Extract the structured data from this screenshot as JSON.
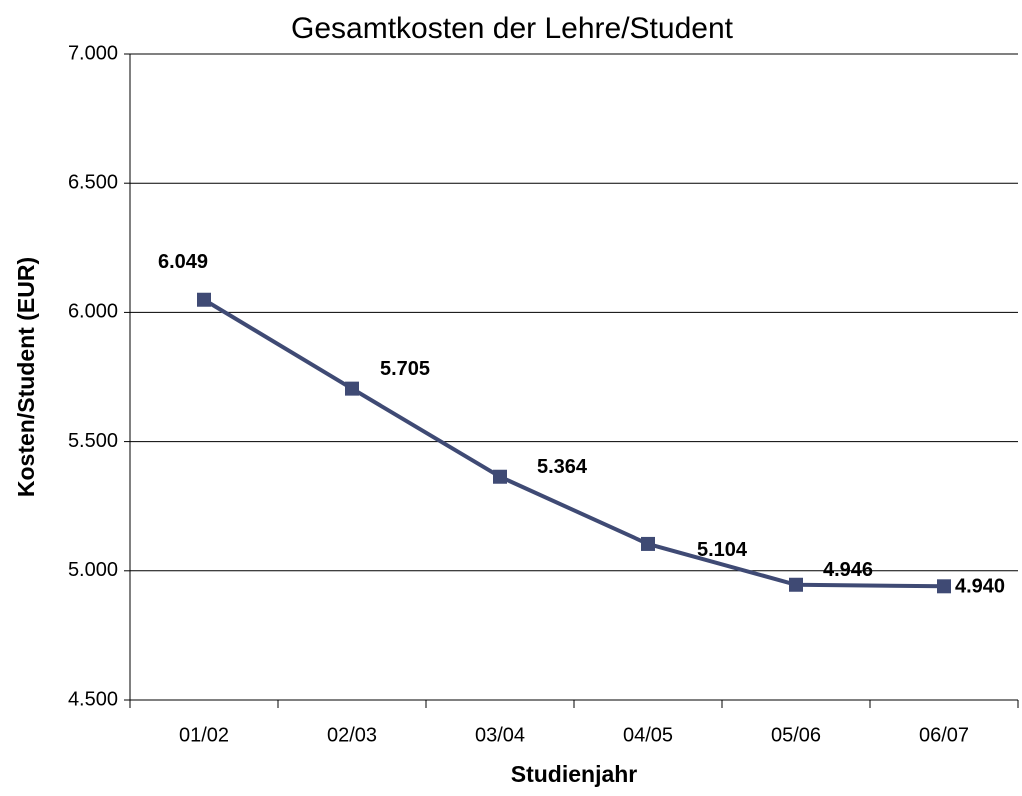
{
  "chart_data": {
    "type": "line",
    "title": "Gesamtkosten der Lehre/Student",
    "x_label": "Studienjahr",
    "y_label": "Kosten/Student (EUR)",
    "categories": [
      "01/02",
      "02/03",
      "03/04",
      "04/05",
      "05/06",
      "06/07"
    ],
    "series": [
      {
        "name": "Gesamtkosten der Lehre/Student",
        "color": "#3f4a74",
        "values": [
          6049,
          5705,
          5364,
          5104,
          4946,
          4940
        ],
        "value_labels": [
          "6.049",
          "5.705",
          "5.364",
          "5.104",
          "4.946",
          "4.940"
        ]
      }
    ],
    "ylim": [
      4500,
      7000
    ],
    "yticks": [
      {
        "value": 4500,
        "label": "4.500"
      },
      {
        "value": 5000,
        "label": "5.000"
      },
      {
        "value": 5500,
        "label": "5.500"
      },
      {
        "value": 6000,
        "label": "6.000"
      },
      {
        "value": 6500,
        "label": "6.500"
      },
      {
        "value": 7000,
        "label": "7.000"
      }
    ],
    "grid": true
  }
}
